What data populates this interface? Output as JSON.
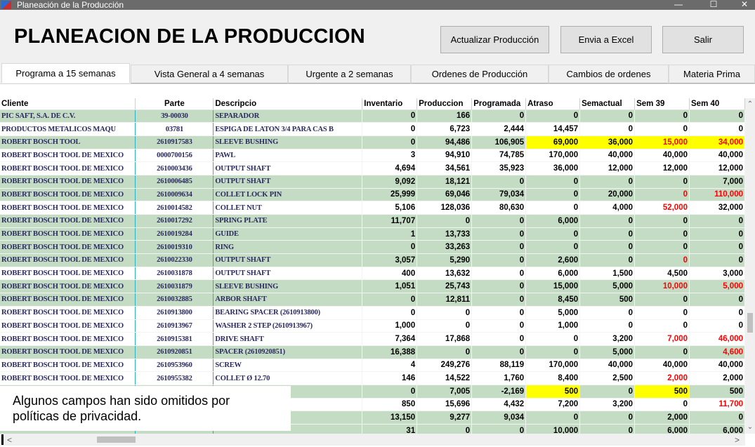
{
  "window": {
    "title": "Planeación de la Producción",
    "minimize_glyph": "—",
    "maximize_glyph": "☐",
    "close_glyph": "✕"
  },
  "header": {
    "title": "PLANEACION DE LA PRODUCCION",
    "buttons": {
      "update": "Actualizar Producción",
      "excel": "Envia a Excel",
      "exit": "Salir"
    }
  },
  "tabs": [
    {
      "label": "Programa a 15 semanas",
      "active": true
    },
    {
      "label": "Vista General a 4 semanas",
      "active": false
    },
    {
      "label": "Urgente a 2 semanas",
      "active": false
    },
    {
      "label": "Ordenes de Producción",
      "active": false
    },
    {
      "label": "Cambios de ordenes",
      "active": false
    },
    {
      "label": "Materia Prima",
      "active": false
    }
  ],
  "table": {
    "columns": [
      "Cliente",
      "Parte",
      "Descripcio",
      "Inventario",
      "Produccion",
      "Programada",
      "Atraso",
      "Semactual",
      "Sem 39",
      "Sem 40"
    ],
    "rows": [
      {
        "cliente": "PIC SAFT, S.A. DE C.V.",
        "parte": "39-00030",
        "desc": "SEPARADOR",
        "v": [
          "0",
          "166",
          "0",
          "0",
          "0",
          "0",
          "0"
        ],
        "yel": [],
        "red": []
      },
      {
        "cliente": "PRODUCTOS METALICOS MAQU",
        "parte": "03781",
        "desc": "ESPIGA DE LATON 3/4 PARA CAS B",
        "v": [
          "0",
          "6,723",
          "2,444",
          "14,457",
          "0",
          "0",
          "0"
        ],
        "yel": [],
        "red": []
      },
      {
        "cliente": "ROBERT BOSCH TOOL",
        "parte": "2610917583",
        "desc": "SLEEVE BUSHING",
        "v": [
          "0",
          "94,486",
          "106,905",
          "69,000",
          "36,000",
          "15,000",
          "34,000"
        ],
        "yel": [
          3,
          4,
          5,
          6
        ],
        "red": [
          5,
          6
        ]
      },
      {
        "cliente": "ROBERT BOSCH TOOL DE MEXICO",
        "parte": "0000700156",
        "desc": "PAWL",
        "v": [
          "3",
          "94,910",
          "74,785",
          "170,000",
          "40,000",
          "40,000",
          "40,000"
        ],
        "yel": [],
        "red": []
      },
      {
        "cliente": "ROBERT BOSCH TOOL DE MEXICO",
        "parte": "2610003436",
        "desc": "OUTPUT SHAFT",
        "v": [
          "4,694",
          "34,561",
          "35,923",
          "36,000",
          "12,000",
          "12,000",
          "12,000"
        ],
        "yel": [],
        "red": []
      },
      {
        "cliente": "ROBERT BOSCH TOOL DE MEXICO",
        "parte": "2610006485",
        "desc": "OUTPUT SHAFT",
        "v": [
          "9,092",
          "18,121",
          "0",
          "0",
          "0",
          "0",
          "7,000"
        ],
        "yel": [],
        "red": []
      },
      {
        "cliente": "ROBERT BOSCH TOOL DE MEXICO",
        "parte": "2610009634",
        "desc": "COLLET LOCK PIN",
        "v": [
          "25,999",
          "69,046",
          "79,034",
          "0",
          "20,000",
          "0",
          "110,000"
        ],
        "yel": [],
        "red": [
          5,
          6
        ]
      },
      {
        "cliente": "ROBERT BOSCH TOOL DE MEXICO",
        "parte": "2610014582",
        "desc": "COLLET NUT",
        "v": [
          "5,106",
          "128,036",
          "80,630",
          "0",
          "4,000",
          "52,000",
          "32,000"
        ],
        "yel": [],
        "red": [
          5
        ]
      },
      {
        "cliente": "ROBERT BOSCH TOOL DE MEXICO",
        "parte": "2610017292",
        "desc": "SPRING PLATE",
        "v": [
          "11,707",
          "0",
          "0",
          "6,000",
          "0",
          "0",
          "0"
        ],
        "yel": [],
        "red": []
      },
      {
        "cliente": "ROBERT BOSCH TOOL DE MEXICO",
        "parte": "2610019284",
        "desc": "GUIDE",
        "v": [
          "1",
          "13,733",
          "0",
          "0",
          "0",
          "0",
          "0"
        ],
        "yel": [],
        "red": []
      },
      {
        "cliente": "ROBERT BOSCH TOOL DE MEXICO",
        "parte": "2610019310",
        "desc": "RING",
        "v": [
          "0",
          "33,263",
          "0",
          "0",
          "0",
          "0",
          "0"
        ],
        "yel": [],
        "red": []
      },
      {
        "cliente": "ROBERT BOSCH TOOL DE MEXICO",
        "parte": "2610022330",
        "desc": "OUTPUT SHAFT",
        "v": [
          "3,057",
          "5,290",
          "0",
          "2,600",
          "0",
          "0",
          "0"
        ],
        "yel": [],
        "red": [
          5
        ]
      },
      {
        "cliente": "ROBERT BOSCH TOOL DE MEXICO",
        "parte": "2610031878",
        "desc": "OUTPUT SHAFT",
        "v": [
          "400",
          "13,632",
          "0",
          "6,000",
          "1,500",
          "4,500",
          "3,000"
        ],
        "yel": [],
        "red": []
      },
      {
        "cliente": "ROBERT BOSCH TOOL DE MEXICO",
        "parte": "2610031879",
        "desc": "SLEEVE BUSHING",
        "v": [
          "1,051",
          "25,743",
          "0",
          "15,000",
          "5,000",
          "10,000",
          "5,000"
        ],
        "yel": [],
        "red": [
          5,
          6
        ]
      },
      {
        "cliente": "ROBERT BOSCH TOOL DE MEXICO",
        "parte": "2610032885",
        "desc": "ARBOR SHAFT",
        "v": [
          "0",
          "12,811",
          "0",
          "8,450",
          "500",
          "0",
          "0"
        ],
        "yel": [],
        "red": []
      },
      {
        "cliente": "ROBERT BOSCH TOOL DE MEXICO",
        "parte": "2610913800",
        "desc": "BEARING SPACER (2610913800)",
        "v": [
          "0",
          "0",
          "0",
          "5,000",
          "0",
          "0",
          "0"
        ],
        "yel": [],
        "red": []
      },
      {
        "cliente": "ROBERT BOSCH TOOL DE MEXICO",
        "parte": "2610913967",
        "desc": "WASHER 2 STEP (2610913967)",
        "v": [
          "1,000",
          "0",
          "0",
          "1,000",
          "0",
          "0",
          "0"
        ],
        "yel": [],
        "red": []
      },
      {
        "cliente": "ROBERT BOSCH TOOL DE MEXICO",
        "parte": "2610915381",
        "desc": "DRIVE SHAFT",
        "v": [
          "7,364",
          "17,868",
          "0",
          "0",
          "3,200",
          "7,000",
          "46,000"
        ],
        "yel": [],
        "red": [
          5,
          6
        ]
      },
      {
        "cliente": "ROBERT BOSCH TOOL DE MEXICO",
        "parte": "2610920851",
        "desc": "SPACER (2610920851)",
        "v": [
          "16,388",
          "0",
          "0",
          "0",
          "5,000",
          "0",
          "4,600"
        ],
        "yel": [],
        "red": [
          6
        ]
      },
      {
        "cliente": "ROBERT BOSCH TOOL DE MEXICO",
        "parte": "2610953960",
        "desc": "SCREW",
        "v": [
          "4",
          "249,276",
          "88,119",
          "170,000",
          "40,000",
          "40,000",
          "40,000"
        ],
        "yel": [],
        "red": []
      },
      {
        "cliente": "ROBERT BOSCH TOOL DE MEXICO",
        "parte": "2610955382",
        "desc": "COLLET Ø 12.70",
        "v": [
          "146",
          "14,522",
          "1,760",
          "8,400",
          "2,500",
          "2,000",
          "2,000"
        ],
        "yel": [],
        "red": [
          5
        ]
      },
      {
        "cliente": "",
        "parte": "",
        "desc": "",
        "v": [
          "0",
          "7,005",
          "-2,169",
          "500",
          "0",
          "500",
          "500"
        ],
        "yel": [
          3,
          5
        ],
        "red": []
      },
      {
        "cliente": "",
        "parte": "",
        "desc": "",
        "v": [
          "850",
          "15,696",
          "4,432",
          "7,200",
          "3,200",
          "0",
          "11,700"
        ],
        "yel": [],
        "red": [
          6
        ]
      },
      {
        "cliente": "",
        "parte": "",
        "desc": "",
        "v": [
          "13,150",
          "9,277",
          "9,034",
          "0",
          "0",
          "2,000",
          "0"
        ],
        "yel": [],
        "red": []
      },
      {
        "cliente": "",
        "parte": "",
        "desc": "",
        "v": [
          "31",
          "0",
          "0",
          "10,000",
          "0",
          "6,000",
          "6,000"
        ],
        "yel": [],
        "red": []
      }
    ]
  },
  "privacy_note": {
    "line1": "Algunos campos han sido omitidos por",
    "line2": "políticas de privacidad."
  },
  "scroll": {
    "up": "⌃",
    "down": "⌄",
    "left": "<",
    "right": ">"
  }
}
